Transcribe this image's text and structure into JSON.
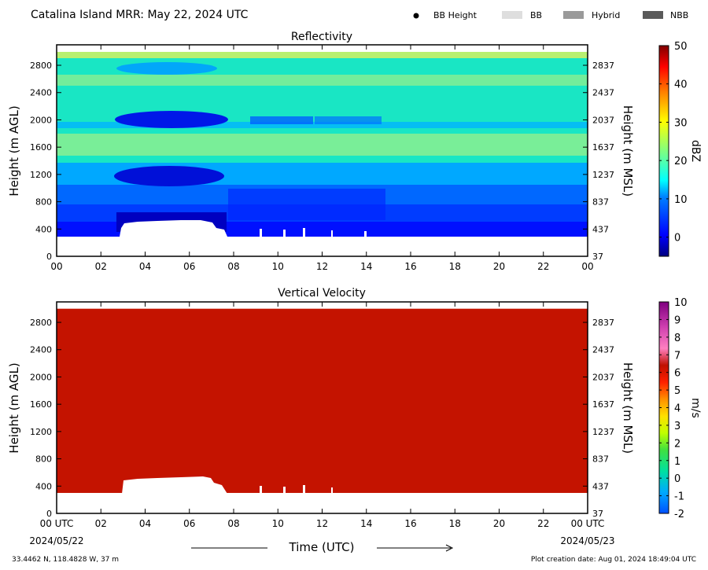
{
  "header": {
    "title": "Catalina Island MRR:  May 22, 2024 UTC",
    "legend": [
      {
        "label": "BB Height",
        "symbol": "dot",
        "color": "#000000"
      },
      {
        "label": "BB",
        "symbol": "box",
        "color": "#dedede"
      },
      {
        "label": "Hybrid",
        "symbol": "box",
        "color": "#9a9a9a"
      },
      {
        "label": "NBB",
        "symbol": "box",
        "color": "#5a5a5a"
      }
    ]
  },
  "footer": {
    "coords": "33.4462 N, 118.4828 W, 37 m",
    "creation": "Plot creation date: Aug 01, 2024 18:49:04 UTC",
    "time_label": "Time (UTC)",
    "start_date": "2024/05/22",
    "end_date": "2024/05/23"
  },
  "chart_data": [
    {
      "type": "heatmap",
      "title": "Reflectivity",
      "ylabel": "Height (m AGL)",
      "ylabel_right": "Height (m MSL)",
      "colorbar_label": "dBZ",
      "x_ticks": [
        "00",
        "02",
        "04",
        "06",
        "08",
        "10",
        "12",
        "14",
        "16",
        "18",
        "20",
        "22",
        "00"
      ],
      "y_ticks_left": [
        "0",
        "400",
        "800",
        "1200",
        "1600",
        "2000",
        "2400",
        "2800"
      ],
      "y_ticks_right": [
        "37",
        "437",
        "837",
        "1237",
        "1637",
        "2037",
        "2437",
        "2837"
      ],
      "xlim": [
        0,
        24
      ],
      "ylim": [
        0,
        3100
      ],
      "colorbar_ticks": [
        "0",
        "10",
        "20",
        "30",
        "40",
        "50"
      ],
      "colorbar_range": [
        -5,
        50
      ],
      "data_top_height": 3000,
      "data_bottom_height": 300,
      "colors": [
        "#000080",
        "#0000ff",
        "#0080ff",
        "#00ffff",
        "#80ff80",
        "#ffff00",
        "#ff8000",
        "#ff0000",
        "#800000"
      ]
    },
    {
      "type": "heatmap",
      "title": "Vertical Velocity",
      "ylabel": "Height (m AGL)",
      "ylabel_right": "Height (m MSL)",
      "colorbar_label": "m/s",
      "x_ticks": [
        "00 UTC",
        "02",
        "04",
        "06",
        "08",
        "10",
        "12",
        "14",
        "16",
        "18",
        "20",
        "22",
        "00 UTC"
      ],
      "y_ticks_left": [
        "0",
        "400",
        "800",
        "1200",
        "1600",
        "2000",
        "2400",
        "2800"
      ],
      "y_ticks_right": [
        "37",
        "437",
        "837",
        "1237",
        "1637",
        "2037",
        "2437",
        "2837"
      ],
      "xlim": [
        0,
        24
      ],
      "ylim": [
        0,
        3100
      ],
      "colorbar_ticks": [
        "-2",
        "-1",
        "0",
        "1",
        "2",
        "3",
        "4",
        "5",
        "6",
        "7",
        "8",
        "9",
        "10"
      ],
      "colorbar_range": [
        -2,
        10
      ],
      "field_color": "#c41300",
      "field_value": 6,
      "data_top_height": 3000,
      "data_bottom_height": 300
    }
  ]
}
